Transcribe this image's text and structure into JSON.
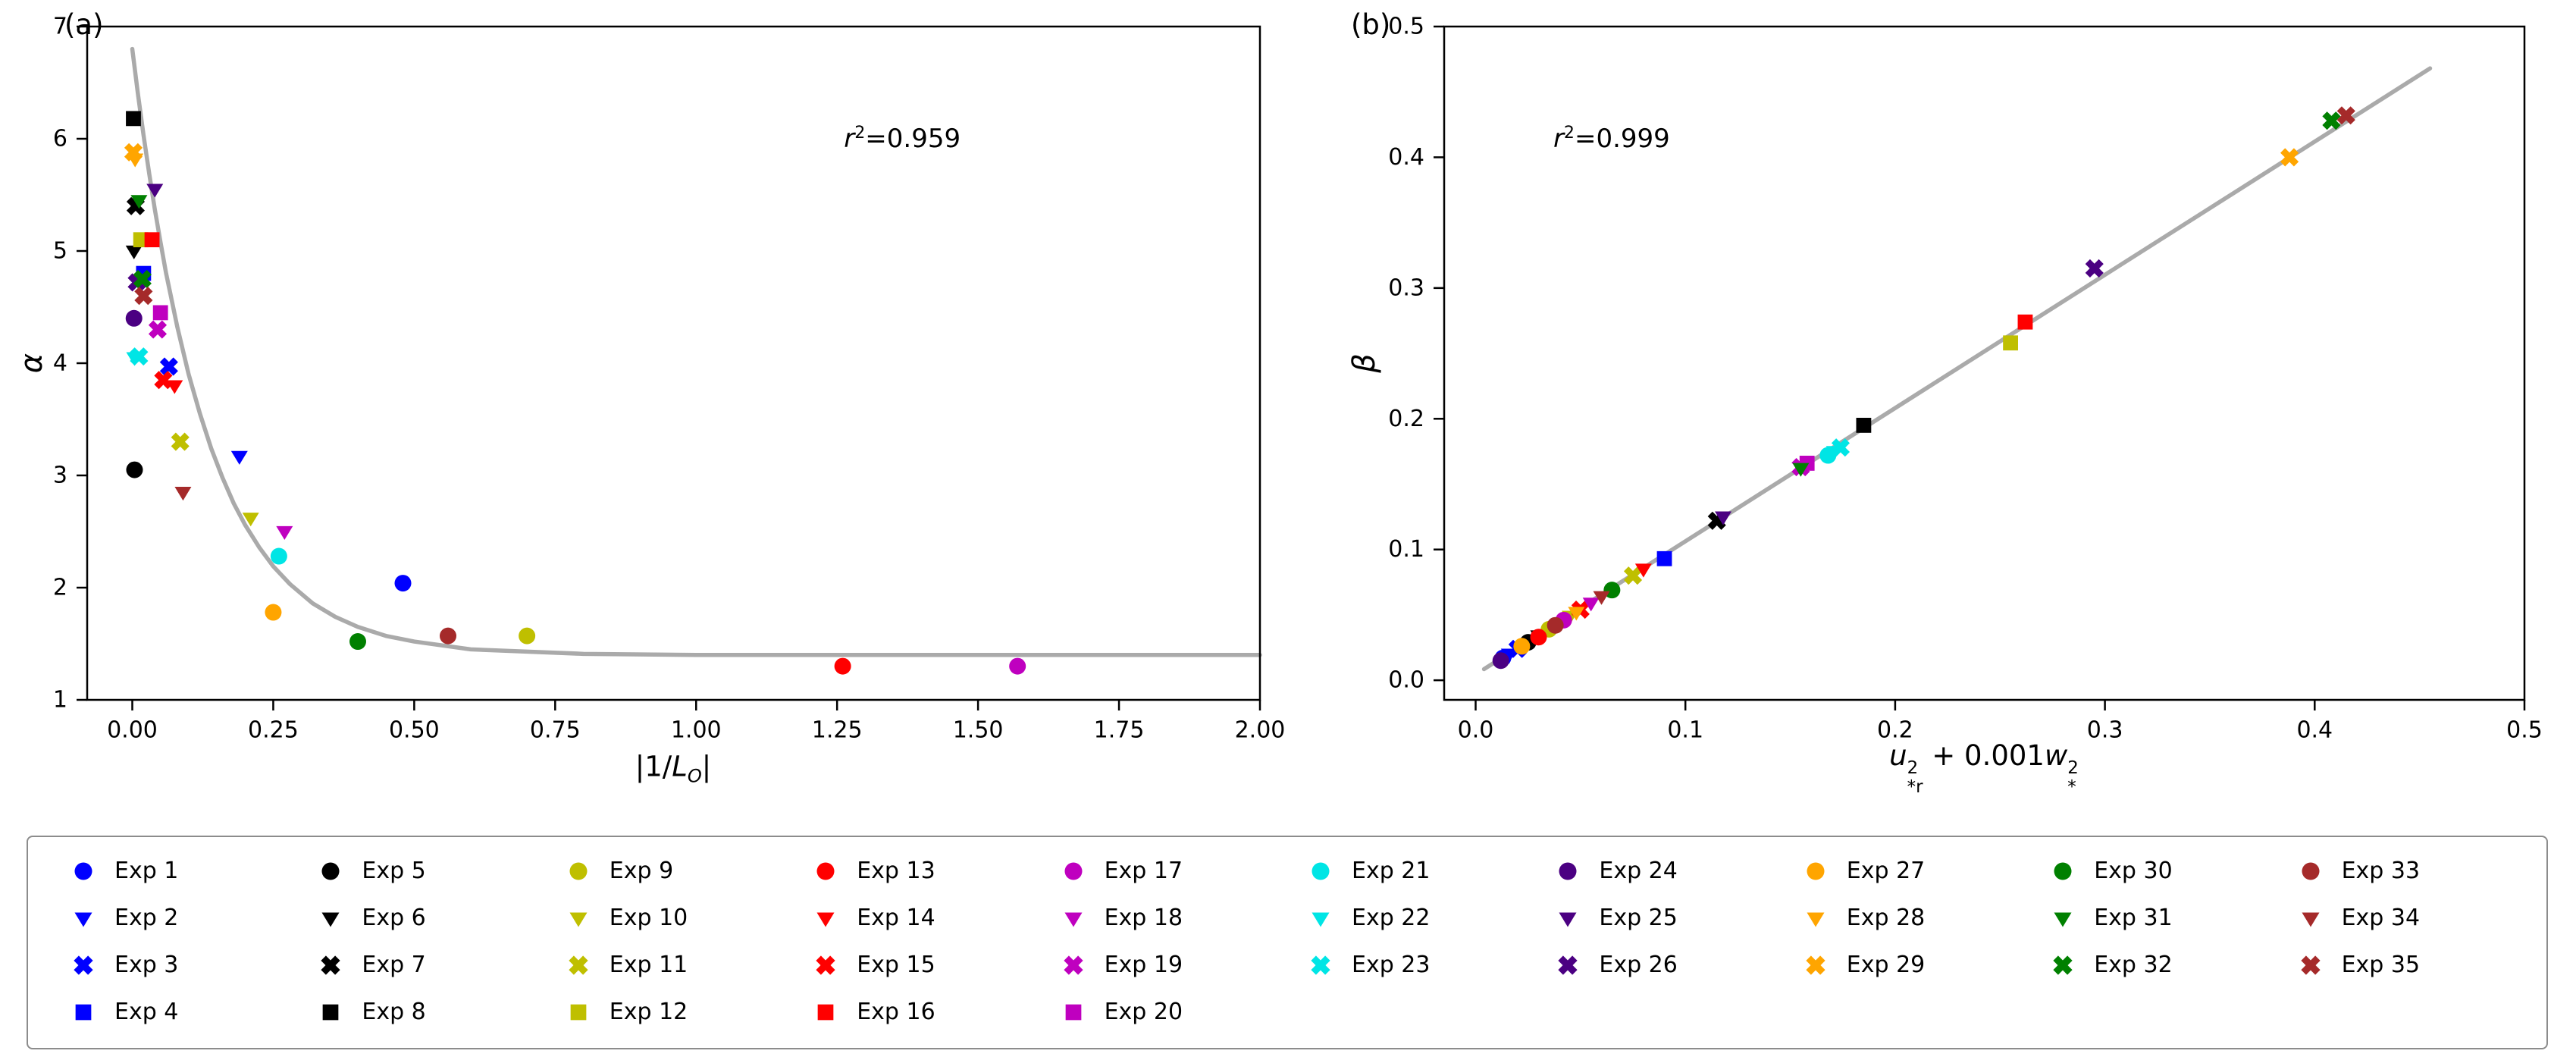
{
  "figure": {
    "background": "#ffffff"
  },
  "chart_data": {
    "type": "scatter",
    "panels": [
      {
        "id": "a",
        "type": "scatter",
        "panel_label": "(a)",
        "xlabel_html": "|1/<i>L</i><sub><i>O</i></sub>|",
        "ylabel_html": "<i>α</i>",
        "annotation": {
          "html": "<i>r</i><sup>2</sup>=0.959",
          "text": "r²=0.959",
          "fx": 0.695,
          "fy": 0.165
        },
        "xlim": [
          -0.08,
          2.0
        ],
        "ylim": [
          1,
          7
        ],
        "xticks": [
          0,
          0.25,
          0.5,
          0.75,
          1.0,
          1.25,
          1.5,
          1.75,
          2.0
        ],
        "xtick_labels": [
          "0.00",
          "0.25",
          "0.50",
          "0.75",
          "1.00",
          "1.25",
          "1.50",
          "1.75",
          "2.00"
        ],
        "yticks": [
          1,
          2,
          3,
          4,
          5,
          6,
          7
        ],
        "ytick_labels": [
          "1",
          "2",
          "3",
          "4",
          "5",
          "6",
          "7"
        ],
        "grid": false,
        "fit_color": "#aaaaaa",
        "fit_curve": [
          [
            0.0,
            6.8
          ],
          [
            0.01,
            6.4
          ],
          [
            0.02,
            6.03
          ],
          [
            0.03,
            5.69
          ],
          [
            0.04,
            5.37
          ],
          [
            0.05,
            5.08
          ],
          [
            0.06,
            4.8
          ],
          [
            0.08,
            4.32
          ],
          [
            0.1,
            3.9
          ],
          [
            0.12,
            3.55
          ],
          [
            0.14,
            3.24
          ],
          [
            0.16,
            2.98
          ],
          [
            0.18,
            2.75
          ],
          [
            0.2,
            2.56
          ],
          [
            0.225,
            2.36
          ],
          [
            0.25,
            2.19
          ],
          [
            0.28,
            2.03
          ],
          [
            0.32,
            1.86
          ],
          [
            0.36,
            1.74
          ],
          [
            0.4,
            1.65
          ],
          [
            0.45,
            1.57
          ],
          [
            0.5,
            1.52
          ],
          [
            0.6,
            1.45
          ],
          [
            0.7,
            1.43
          ],
          [
            0.8,
            1.41
          ],
          [
            1.0,
            1.4
          ],
          [
            1.25,
            1.4
          ],
          [
            1.5,
            1.4
          ],
          [
            1.75,
            1.4
          ],
          [
            2.0,
            1.4
          ]
        ],
        "point_key": "a"
      },
      {
        "id": "b",
        "type": "scatter",
        "panel_label": "(b)",
        "xlabel_html": "<i>u</i><span class=\"ss\"><span class=\"t\">2</span><span class=\"b\">*r</span></span> + 0.001<i>w</i><span class=\"ss\"><span class=\"t\">2</span><span class=\"b\">*</span></span>",
        "ylabel_html": "<i>β</i>",
        "annotation": {
          "html": "<i>r</i><sup>2</sup>=0.999",
          "text": "r²=0.999",
          "fx": 0.155,
          "fy": 0.165
        },
        "xlim": [
          -0.015,
          0.5
        ],
        "ylim": [
          -0.015,
          0.5
        ],
        "xticks": [
          0,
          0.1,
          0.2,
          0.3,
          0.4,
          0.5
        ],
        "xtick_labels": [
          "0.0",
          "0.1",
          "0.2",
          "0.3",
          "0.4",
          "0.5"
        ],
        "yticks": [
          0,
          0.1,
          0.2,
          0.3,
          0.4,
          0.5
        ],
        "ytick_labels": [
          "0.0",
          "0.1",
          "0.2",
          "0.3",
          "0.4",
          "0.5"
        ],
        "grid": false,
        "fit_color": "#aaaaaa",
        "fit_curve": [
          [
            0.004,
            0.0085
          ],
          [
            0.455,
            0.468
          ]
        ],
        "point_key": "b"
      }
    ],
    "experiments": [
      {
        "label": "Exp 1",
        "color": "#0000ff",
        "marker": "circle",
        "a": [
          0.48,
          2.04
        ],
        "b": [
          0.013,
          0.017
        ]
      },
      {
        "label": "Exp 2",
        "color": "#0000ff",
        "marker": "triangle-down",
        "a": [
          0.19,
          3.17
        ],
        "b": [
          0.016,
          0.02
        ]
      },
      {
        "label": "Exp 3",
        "color": "#0000ff",
        "marker": "x",
        "a": [
          0.065,
          3.97
        ],
        "b": [
          0.02,
          0.024
        ]
      },
      {
        "label": "Exp 4",
        "color": "#0000ff",
        "marker": "square",
        "a": [
          0.02,
          4.8
        ],
        "b": [
          0.09,
          0.093
        ]
      },
      {
        "label": "Exp 5",
        "color": "#000000",
        "marker": "circle",
        "a": [
          0.004,
          3.05
        ],
        "b": [
          0.025,
          0.029
        ]
      },
      {
        "label": "Exp 6",
        "color": "#000000",
        "marker": "triangle-down",
        "a": [
          0.003,
          5.0
        ],
        "b": [
          0.03,
          0.034
        ]
      },
      {
        "label": "Exp 7",
        "color": "#000000",
        "marker": "x",
        "a": [
          0.006,
          5.4
        ],
        "b": [
          0.115,
          0.122
        ]
      },
      {
        "label": "Exp 8",
        "color": "#000000",
        "marker": "square",
        "a": [
          0.002,
          6.18
        ],
        "b": [
          0.185,
          0.195
        ]
      },
      {
        "label": "Exp 9",
        "color": "#bfbf00",
        "marker": "circle",
        "a": [
          0.7,
          1.57
        ],
        "b": [
          0.035,
          0.039
        ]
      },
      {
        "label": "Exp 10",
        "color": "#bfbf00",
        "marker": "triangle-down",
        "a": [
          0.21,
          2.62
        ],
        "b": [
          0.045,
          0.049
        ]
      },
      {
        "label": "Exp 11",
        "color": "#bfbf00",
        "marker": "x",
        "a": [
          0.085,
          3.3
        ],
        "b": [
          0.075,
          0.08
        ]
      },
      {
        "label": "Exp 12",
        "color": "#bfbf00",
        "marker": "square",
        "a": [
          0.015,
          5.1
        ],
        "b": [
          0.255,
          0.258
        ]
      },
      {
        "label": "Exp 13",
        "color": "#ff0000",
        "marker": "circle",
        "a": [
          1.26,
          1.3
        ],
        "b": [
          0.03,
          0.033
        ]
      },
      {
        "label": "Exp 14",
        "color": "#ff0000",
        "marker": "triangle-down",
        "a": [
          0.075,
          3.8
        ],
        "b": [
          0.08,
          0.085
        ]
      },
      {
        "label": "Exp 15",
        "color": "#ff0000",
        "marker": "x",
        "a": [
          0.055,
          3.85
        ],
        "b": [
          0.05,
          0.054
        ]
      },
      {
        "label": "Exp 16",
        "color": "#ff0000",
        "marker": "square",
        "a": [
          0.035,
          5.1
        ],
        "b": [
          0.262,
          0.274
        ]
      },
      {
        "label": "Exp 17",
        "color": "#bf00bf",
        "marker": "circle",
        "a": [
          1.57,
          1.3
        ],
        "b": [
          0.042,
          0.046
        ]
      },
      {
        "label": "Exp 18",
        "color": "#bf00bf",
        "marker": "triangle-down",
        "a": [
          0.27,
          2.5
        ],
        "b": [
          0.055,
          0.059
        ]
      },
      {
        "label": "Exp 19",
        "color": "#bf00bf",
        "marker": "x",
        "a": [
          0.045,
          4.3
        ],
        "b": [
          0.155,
          0.163
        ]
      },
      {
        "label": "Exp 20",
        "color": "#bf00bf",
        "marker": "square",
        "a": [
          0.05,
          4.45
        ],
        "b": [
          0.158,
          0.166
        ]
      },
      {
        "label": "Exp 21",
        "color": "#00e5e5",
        "marker": "circle",
        "a": [
          0.26,
          2.28
        ],
        "b": [
          0.168,
          0.172
        ]
      },
      {
        "label": "Exp 22",
        "color": "#00e5e5",
        "marker": "triangle-down",
        "a": [
          0.004,
          4.05
        ],
        "b": [
          0.171,
          0.175
        ]
      },
      {
        "label": "Exp 23",
        "color": "#00e5e5",
        "marker": "x",
        "a": [
          0.012,
          4.06
        ],
        "b": [
          0.174,
          0.178
        ]
      },
      {
        "label": "Exp 24",
        "color": "#4b0082",
        "marker": "circle",
        "a": [
          0.003,
          4.4
        ],
        "b": [
          0.012,
          0.015
        ]
      },
      {
        "label": "Exp 25",
        "color": "#4b0082",
        "marker": "triangle-down",
        "a": [
          0.04,
          5.55
        ],
        "b": [
          0.118,
          0.125
        ]
      },
      {
        "label": "Exp 26",
        "color": "#4b0082",
        "marker": "x",
        "a": [
          0.008,
          4.72
        ],
        "b": [
          0.295,
          0.315
        ]
      },
      {
        "label": "Exp 27",
        "color": "#ffa500",
        "marker": "circle",
        "a": [
          0.25,
          1.78
        ],
        "b": [
          0.022,
          0.026
        ]
      },
      {
        "label": "Exp 28",
        "color": "#ffa500",
        "marker": "triangle-down",
        "a": [
          0.005,
          5.82
        ],
        "b": [
          0.048,
          0.052
        ]
      },
      {
        "label": "Exp 29",
        "color": "#ffa500",
        "marker": "x",
        "a": [
          0.002,
          5.88
        ],
        "b": [
          0.388,
          0.4
        ]
      },
      {
        "label": "Exp 30",
        "color": "#008000",
        "marker": "circle",
        "a": [
          0.4,
          1.52
        ],
        "b": [
          0.065,
          0.069
        ]
      },
      {
        "label": "Exp 31",
        "color": "#008000",
        "marker": "triangle-down",
        "a": [
          0.012,
          5.45
        ],
        "b": [
          0.155,
          0.162
        ]
      },
      {
        "label": "Exp 32",
        "color": "#008000",
        "marker": "x",
        "a": [
          0.018,
          4.75
        ],
        "b": [
          0.408,
          0.428
        ]
      },
      {
        "label": "Exp 33",
        "color": "#a52a2a",
        "marker": "circle",
        "a": [
          0.56,
          1.57
        ],
        "b": [
          0.038,
          0.042
        ]
      },
      {
        "label": "Exp 34",
        "color": "#a52a2a",
        "marker": "triangle-down",
        "a": [
          0.09,
          2.85
        ],
        "b": [
          0.06,
          0.064
        ]
      },
      {
        "label": "Exp 35",
        "color": "#a52a2a",
        "marker": "x",
        "a": [
          0.02,
          4.6
        ],
        "b": [
          0.415,
          0.432
        ]
      }
    ]
  },
  "legend": {
    "border_color": "#8c8c8c",
    "column_groups": [
      4,
      4,
      4,
      4,
      4,
      3,
      3,
      3,
      3,
      3
    ]
  }
}
